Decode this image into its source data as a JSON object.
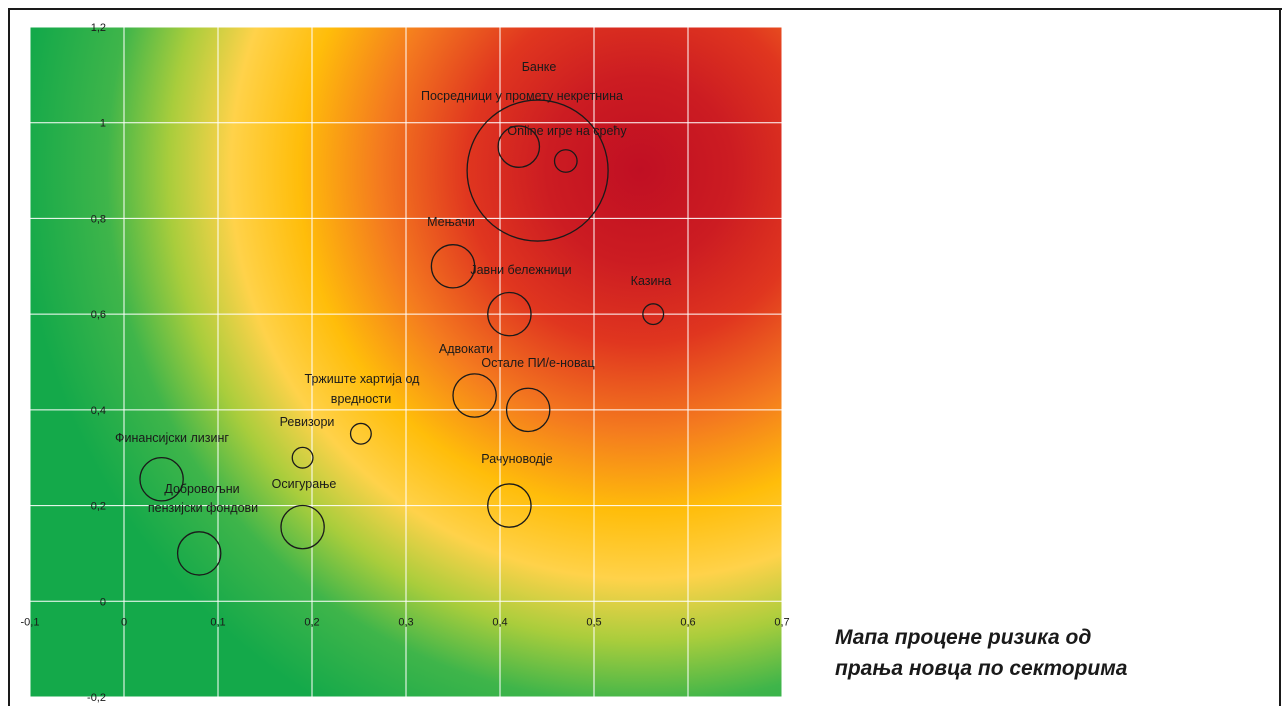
{
  "caption": {
    "line1": "Мапа процене ризика од",
    "line2": "прања новца по секторима"
  },
  "chart_data": {
    "type": "scatter",
    "subtype": "bubble",
    "title": "Мапа процене ризика од прања новца по секторима",
    "xlabel": "",
    "ylabel": "",
    "xlim": [
      -0.1,
      0.7
    ],
    "ylim": [
      -0.2,
      1.2
    ],
    "xticks": [
      "-0,1",
      "0",
      "0,1",
      "0,2",
      "0,3",
      "0,4",
      "0,5",
      "0,6",
      "0,7"
    ],
    "yticks": [
      "-0,2",
      "0",
      "0,2",
      "0,4",
      "0,6",
      "0,8",
      "1",
      "1,2"
    ],
    "grid": true,
    "background": "gradient green (low risk) to yellow/orange to red (high risk, top-right)",
    "colors": {
      "low": "#14a94a",
      "mid": "#ffc000",
      "high": "#c00f23",
      "bubble_outline": "#1a1a1a",
      "grid": "#ffffff"
    },
    "points": [
      {
        "label": "Банке",
        "x": 0.44,
        "y": 0.9,
        "size": 0.75
      },
      {
        "label": "Посредници у промету некретнина",
        "x": 0.42,
        "y": 0.95,
        "size": 0.22
      },
      {
        "label": "Online игре на срећу",
        "x": 0.47,
        "y": 0.92,
        "size": 0.12
      },
      {
        "label": "Мењачи",
        "x": 0.35,
        "y": 0.7,
        "size": 0.23
      },
      {
        "label": "Јавни бележници",
        "x": 0.41,
        "y": 0.6,
        "size": 0.23
      },
      {
        "label": "Казина",
        "x": 0.563,
        "y": 0.6,
        "size": 0.11
      },
      {
        "label": "Адвокати",
        "x": 0.373,
        "y": 0.43,
        "size": 0.23
      },
      {
        "label": "Остале ПИ/е-новац",
        "x": 0.43,
        "y": 0.4,
        "size": 0.23
      },
      {
        "label": "Тржиште хартија од вредности",
        "x": 0.252,
        "y": 0.35,
        "size": 0.11
      },
      {
        "label": "Ревизори",
        "x": 0.19,
        "y": 0.3,
        "size": 0.11
      },
      {
        "label": "Финансијски лизинг",
        "x": 0.04,
        "y": 0.255,
        "size": 0.23
      },
      {
        "label": "Рачуноводје",
        "x": 0.41,
        "y": 0.2,
        "size": 0.23
      },
      {
        "label": "Осигурање",
        "x": 0.19,
        "y": 0.155,
        "size": 0.23
      },
      {
        "label": "Добровољни пензијски фондови",
        "x": 0.08,
        "y": 0.1,
        "size": 0.23
      }
    ]
  }
}
